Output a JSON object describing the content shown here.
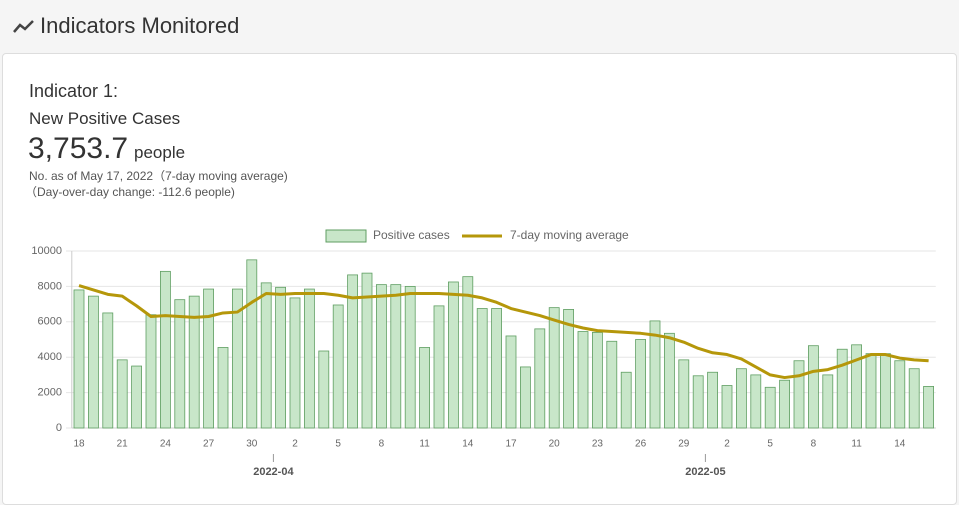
{
  "header": {
    "title": "Indicators Monitored"
  },
  "card": {
    "indicator": "Indicator 1:",
    "name": "New Positive Cases",
    "value": "3,753.7",
    "unit": "people",
    "note": "No. as of May 17, 2022（7-day moving average)",
    "change": "（Day-over-day change: -112.6 people)"
  },
  "chart_data": {
    "type": "combo",
    "categories": [
      "18",
      null,
      null,
      "21",
      null,
      null,
      "24",
      null,
      null,
      "27",
      null,
      null,
      "30",
      null,
      null,
      "2",
      null,
      null,
      "5",
      null,
      null,
      "8",
      null,
      null,
      "11",
      null,
      null,
      "14",
      null,
      null,
      "17",
      null,
      null,
      "20",
      null,
      null,
      "23",
      null,
      null,
      "26",
      null,
      null,
      "29",
      null,
      null,
      "2",
      null,
      null,
      "5",
      null,
      null,
      "8",
      null,
      null,
      "11",
      null,
      null,
      "14",
      null,
      null
    ],
    "months": [
      "2022-04",
      "2022-05"
    ],
    "series": [
      {
        "name": "Positive cases",
        "type": "bar",
        "color": "#c8e6c9",
        "edge": "#5f9e62",
        "values": [
          7800,
          7450,
          6500,
          3850,
          3500,
          6400,
          8850,
          7250,
          7450,
          7850,
          4550,
          7850,
          9500,
          8200,
          7950,
          7350,
          7850,
          4350,
          6950,
          8650,
          8750,
          8100,
          8100,
          8000,
          4550,
          6900,
          8250,
          8550,
          6750,
          6750,
          5200,
          3450,
          5600,
          6800,
          6700,
          5450,
          5400,
          4900,
          3150,
          5000,
          6050,
          5350,
          3850,
          2950,
          3150,
          2400,
          3350,
          3000,
          2300,
          2700,
          3800,
          4650,
          3000,
          4450,
          4700,
          4200,
          4200,
          3800,
          3350,
          2350
        ]
      },
      {
        "name": "7-day moving average",
        "type": "line",
        "color": "#b5970a",
        "values": [
          8050,
          7800,
          7550,
          7450,
          6900,
          6300,
          6350,
          6300,
          6250,
          6300,
          6500,
          6550,
          7100,
          7600,
          7550,
          7600,
          7600,
          7600,
          7500,
          7350,
          7400,
          7450,
          7500,
          7600,
          7600,
          7600,
          7550,
          7500,
          7350,
          7100,
          6750,
          6550,
          6350,
          6100,
          5850,
          5650,
          5500,
          5450,
          5400,
          5350,
          5250,
          5100,
          4850,
          4500,
          4250,
          4150,
          3900,
          3450,
          3000,
          2850,
          2950,
          3200,
          3300,
          3550,
          3850,
          4150,
          4150,
          3950,
          3850,
          3800
        ]
      }
    ],
    "ylim": [
      0,
      10000
    ],
    "yticks": [
      0,
      2000,
      4000,
      6000,
      8000,
      10000
    ],
    "grid": true,
    "legend": "top"
  }
}
